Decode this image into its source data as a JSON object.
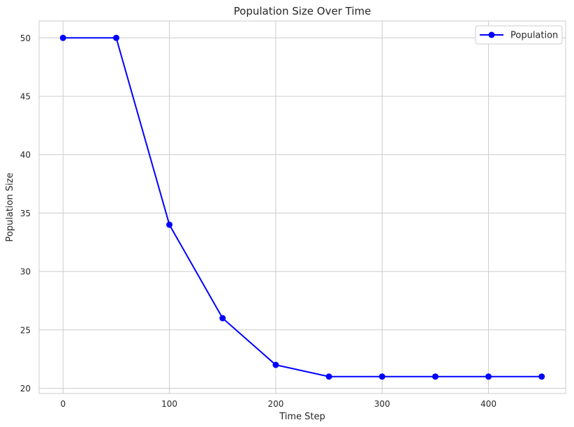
{
  "chart_data": {
    "type": "line",
    "title": "Population Size Over Time",
    "xlabel": "Time Step",
    "ylabel": "Population Size",
    "x": [
      0,
      50,
      100,
      150,
      200,
      250,
      300,
      350,
      400,
      450
    ],
    "series": [
      {
        "name": "Population",
        "values": [
          50,
          50,
          34,
          26,
          22,
          21,
          21,
          21,
          21,
          21
        ],
        "color": "#0000ff",
        "marker": "circle"
      }
    ],
    "xlim": [
      -22.5,
      472.5
    ],
    "ylim": [
      19.55,
      51.45
    ],
    "xticks": [
      0,
      100,
      200,
      300,
      400
    ],
    "yticks": [
      20,
      25,
      30,
      35,
      40,
      45,
      50
    ],
    "grid": true,
    "legend": "top-right"
  }
}
